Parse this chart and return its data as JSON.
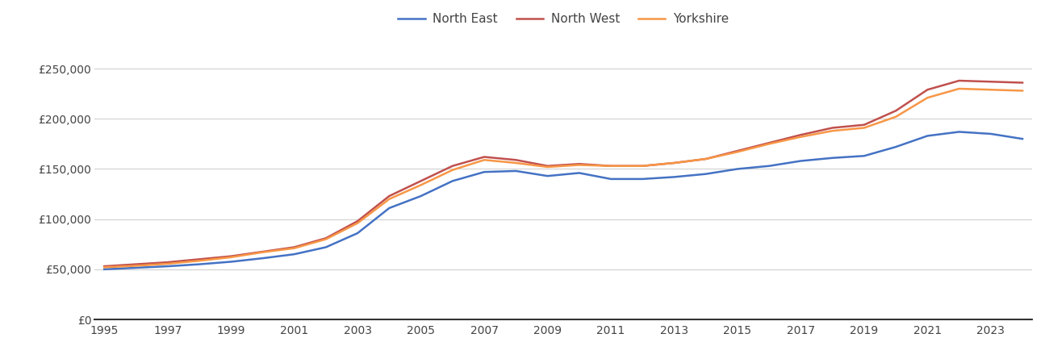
{
  "years": [
    1995,
    1996,
    1997,
    1998,
    1999,
    2000,
    2001,
    2002,
    2003,
    2004,
    2005,
    2006,
    2007,
    2008,
    2009,
    2010,
    2011,
    2012,
    2013,
    2014,
    2015,
    2016,
    2017,
    2018,
    2019,
    2020,
    2021,
    2022,
    2023,
    2024
  ],
  "north_east": [
    50000,
    51500,
    53000,
    55000,
    57500,
    61000,
    65000,
    72000,
    86000,
    111000,
    123000,
    138000,
    147000,
    148000,
    143000,
    146000,
    140000,
    140000,
    142000,
    145000,
    150000,
    153000,
    158000,
    161000,
    163000,
    172000,
    183000,
    187000,
    185000,
    180000
  ],
  "north_west": [
    53000,
    55000,
    57000,
    60000,
    63000,
    67500,
    72000,
    81000,
    98000,
    123000,
    138000,
    153000,
    162000,
    159000,
    153000,
    155000,
    153000,
    153000,
    156000,
    160000,
    168000,
    176000,
    184000,
    191000,
    194000,
    208000,
    229000,
    238000,
    237000,
    236000
  ],
  "yorkshire": [
    52000,
    53500,
    55500,
    58500,
    62000,
    67000,
    71000,
    80000,
    96000,
    120000,
    134000,
    149000,
    159000,
    156000,
    152000,
    154000,
    153000,
    153000,
    156000,
    160000,
    167000,
    175000,
    182000,
    188000,
    191000,
    202000,
    221000,
    230000,
    229000,
    228000
  ],
  "line_colors": {
    "north_east": "#4472c4",
    "north_west": "#c0504d",
    "yorkshire": "#f79646"
  },
  "legend_labels": [
    "North East",
    "North West",
    "Yorkshire"
  ],
  "ylim": [
    0,
    275000
  ],
  "yticks": [
    0,
    50000,
    100000,
    150000,
    200000,
    250000
  ],
  "xtick_step": 2,
  "background_color": "#ffffff",
  "grid_color": "#d0d0d0",
  "line_width": 1.8
}
